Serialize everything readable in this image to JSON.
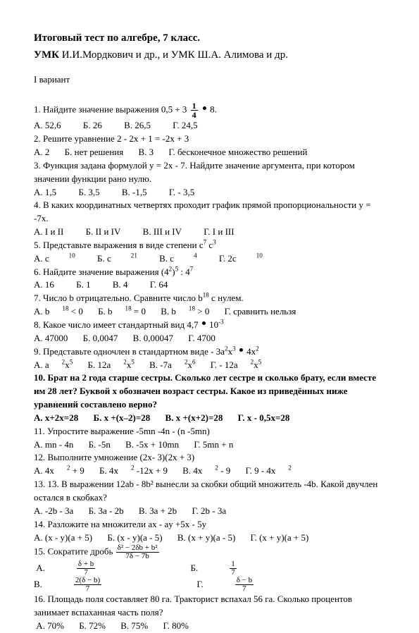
{
  "title": "Итоговый тест по алгебре, 7 класс.",
  "subtitle_prefix": "УМК ",
  "subtitle_body": "И.И.Мордкович и др., и УМК Ш.А. Алимова и др.",
  "variant": "I вариант",
  "q1": "1. Найдите значение выражения 0,5 + 3 ",
  "q1_tail": " 8.",
  "q1a": "А.  52,6",
  "q1b": "Б. 26",
  "q1c": "В. 26,5",
  "q1d": "Г. 24,5",
  "q2": "2.  Решите уравнение  2 - 2x + 1 = -2x + 3",
  "q2a": "А. 2",
  "q2b": "Б. нет решения",
  "q2c": "В. 3",
  "q2d": "Г. бесконечное множество решений",
  "q3": "3. Функция задана формулой y = 2x - 7. Найдите значение аргумента, при котором значении функции рано нулю.",
  "q3a": "А. 1,5",
  "q3b": "Б.  3,5",
  "q3c": "В.   -1,5",
  "q3d": "Г. - 3,5",
  "q4": "4. В каких координатных четвертях проходит график прямой пропорциональности y = -7x.",
  "q4a": "А.  I и II",
  "q4b": "Б.  II и  IV",
  "q4c": "В.  III и IV",
  "q4d": "Г.  I и III",
  "q5p": "5. Представьте выражения в виде степени  c",
  "q5a": "А.  c",
  "q5b": "Б.  c",
  "q5c": "В.  c",
  "q5d": "Г.  2c",
  "q6": "6.  Найдите значение выражения (4",
  "q6a": "А. 16",
  "q6b": "Б.  1",
  "q6c": "В.  4",
  "q6d": "Г. 64",
  "q7": "7.  Число b отрицательно. Сравните число b",
  "q7tail": " с нулем.",
  "q7a": "А.   b",
  "q7b": "Б.   b",
  "q7c": "В.   b",
  "q7d": "Г.  сравнить нельзя",
  "q8": "8. Какое число имеет стандартный вид 4,7 ",
  "q8a": "А.  47000",
  "q8b": "Б.  0,0047",
  "q8c": "В. 0,00047",
  "q8d": "Г.  4700",
  "q9": "9.  Представьте одночлен в стандартном виде - 3a",
  "q9a": "А. a",
  "q9b": "Б.  12a",
  "q9c": "В.  -7a",
  "q9d": "Г. - 12a",
  "q10": "10.  Брат на 2 года старше сестры. Сколько лет сестре и сколько брату, если вместе им 28 лет? Буквой x обозначен возраст сестры. Какое из приведённых ниже уравнений составлено верно?",
  "q10a": "А.  x+2x=28",
  "q10b": "Б. x +(x–2)=28",
  "q10c": "В. x +(x+2)=28",
  "q10d": "Г. x - 0,5x=28",
  "q11": "11. Упростите выражение -5mn -4n - (n -5mn)",
  "q11a": "А.  mn - 4n",
  "q11b": "Б.  -5n",
  "q11c": "В.  -5x + 10mn",
  "q11d": "Г.  5mn + n",
  "q12": "12.  Выполните умножение  (2x- 3)(2x + 3)",
  "q12a": "А.  4x",
  "q12b": "Б.  4x",
  "q12c": "В.  4x",
  "q12d": "Г.  9 - 4x",
  "q13": "13. 13. В выражении  12ab - 8b²  вынесли за скобки общий множитель -4b.  Какой двучлен остался в скобках?",
  "q13a": "А.  -2b - 3a",
  "q13b": "Б.  3a - 2b",
  "q13c": "В. 3a + 2b",
  "q13d": "Г. 2b - 3a",
  "q14": "14. Разложите на множители   ax - ay +5x - 5y",
  "q14a": "А.  (x - y)(a + 5)",
  "q14b": "Б.  (x - y)(a - 5)",
  "q14c": "В.  (x + y)(a - 5)",
  "q14d": "Г.  (x + y)(a + 5)",
  "q15": "15. Сократите дробь ",
  "q15a": "А. ",
  "q15b": "Б. ",
  "q15c": "В. ",
  "q15d": "Г. ",
  "q16": "16.  Площадь  поля  составляет  80  га.  Тракторист  вспахал  56  га.  Сколько процентов занимает вспаханная часть поля?",
  "q16a": "А.  70%",
  "q16b": "Б. 72%",
  "q16c": "В.  75%",
  "q16d": "Г. 80%",
  "frac1_num": "1",
  "frac1_den": "4",
  "frac15main_num": "δ² − 2δb + b²",
  "frac15main_den": "7δ − 7b",
  "f15a_num": "δ + b",
  "f15a_den": "7",
  "f15b_num": "1",
  "f15b_den": "7",
  "f15c_num": "2(δ − b)",
  "f15c_den": "7",
  "f15d_num": "δ − b",
  "f15d_den": "7"
}
